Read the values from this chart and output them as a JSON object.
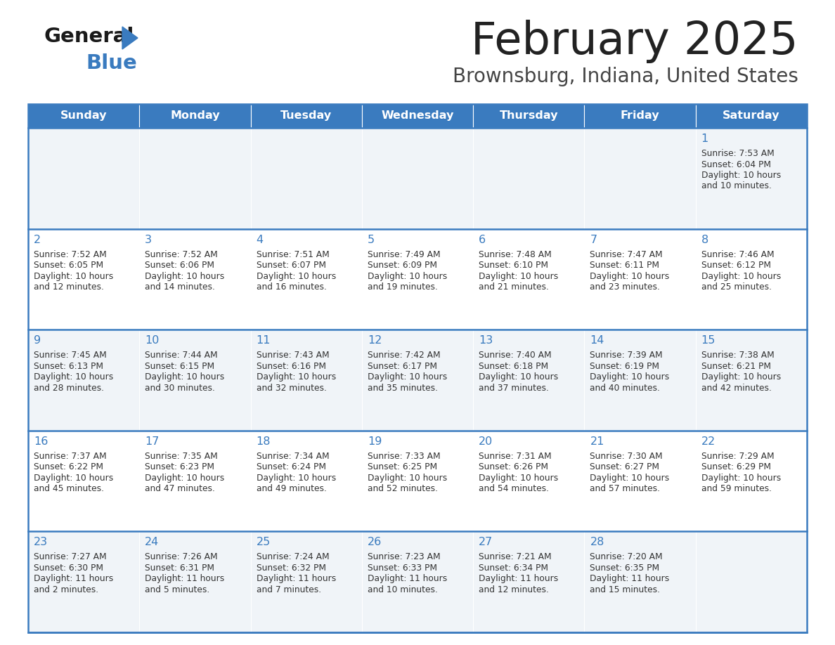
{
  "title": "February 2025",
  "subtitle": "Brownsburg, Indiana, United States",
  "header_color": "#3a7bbf",
  "header_text_color": "#ffffff",
  "title_color": "#222222",
  "subtitle_color": "#444444",
  "day_number_color": "#3a7bbf",
  "cell_text_color": "#333333",
  "cell_bg_even": "#f0f4f8",
  "cell_bg_odd": "#ffffff",
  "border_color": "#3a7bbf",
  "days_of_week": [
    "Sunday",
    "Monday",
    "Tuesday",
    "Wednesday",
    "Thursday",
    "Friday",
    "Saturday"
  ],
  "calendar": [
    [
      null,
      null,
      null,
      null,
      null,
      null,
      {
        "day": 1,
        "sunrise": "7:53 AM",
        "sunset": "6:04 PM",
        "daylight": "10 hours\nand 10 minutes."
      }
    ],
    [
      {
        "day": 2,
        "sunrise": "7:52 AM",
        "sunset": "6:05 PM",
        "daylight": "10 hours\nand 12 minutes."
      },
      {
        "day": 3,
        "sunrise": "7:52 AM",
        "sunset": "6:06 PM",
        "daylight": "10 hours\nand 14 minutes."
      },
      {
        "day": 4,
        "sunrise": "7:51 AM",
        "sunset": "6:07 PM",
        "daylight": "10 hours\nand 16 minutes."
      },
      {
        "day": 5,
        "sunrise": "7:49 AM",
        "sunset": "6:09 PM",
        "daylight": "10 hours\nand 19 minutes."
      },
      {
        "day": 6,
        "sunrise": "7:48 AM",
        "sunset": "6:10 PM",
        "daylight": "10 hours\nand 21 minutes."
      },
      {
        "day": 7,
        "sunrise": "7:47 AM",
        "sunset": "6:11 PM",
        "daylight": "10 hours\nand 23 minutes."
      },
      {
        "day": 8,
        "sunrise": "7:46 AM",
        "sunset": "6:12 PM",
        "daylight": "10 hours\nand 25 minutes."
      }
    ],
    [
      {
        "day": 9,
        "sunrise": "7:45 AM",
        "sunset": "6:13 PM",
        "daylight": "10 hours\nand 28 minutes."
      },
      {
        "day": 10,
        "sunrise": "7:44 AM",
        "sunset": "6:15 PM",
        "daylight": "10 hours\nand 30 minutes."
      },
      {
        "day": 11,
        "sunrise": "7:43 AM",
        "sunset": "6:16 PM",
        "daylight": "10 hours\nand 32 minutes."
      },
      {
        "day": 12,
        "sunrise": "7:42 AM",
        "sunset": "6:17 PM",
        "daylight": "10 hours\nand 35 minutes."
      },
      {
        "day": 13,
        "sunrise": "7:40 AM",
        "sunset": "6:18 PM",
        "daylight": "10 hours\nand 37 minutes."
      },
      {
        "day": 14,
        "sunrise": "7:39 AM",
        "sunset": "6:19 PM",
        "daylight": "10 hours\nand 40 minutes."
      },
      {
        "day": 15,
        "sunrise": "7:38 AM",
        "sunset": "6:21 PM",
        "daylight": "10 hours\nand 42 minutes."
      }
    ],
    [
      {
        "day": 16,
        "sunrise": "7:37 AM",
        "sunset": "6:22 PM",
        "daylight": "10 hours\nand 45 minutes."
      },
      {
        "day": 17,
        "sunrise": "7:35 AM",
        "sunset": "6:23 PM",
        "daylight": "10 hours\nand 47 minutes."
      },
      {
        "day": 18,
        "sunrise": "7:34 AM",
        "sunset": "6:24 PM",
        "daylight": "10 hours\nand 49 minutes."
      },
      {
        "day": 19,
        "sunrise": "7:33 AM",
        "sunset": "6:25 PM",
        "daylight": "10 hours\nand 52 minutes."
      },
      {
        "day": 20,
        "sunrise": "7:31 AM",
        "sunset": "6:26 PM",
        "daylight": "10 hours\nand 54 minutes."
      },
      {
        "day": 21,
        "sunrise": "7:30 AM",
        "sunset": "6:27 PM",
        "daylight": "10 hours\nand 57 minutes."
      },
      {
        "day": 22,
        "sunrise": "7:29 AM",
        "sunset": "6:29 PM",
        "daylight": "10 hours\nand 59 minutes."
      }
    ],
    [
      {
        "day": 23,
        "sunrise": "7:27 AM",
        "sunset": "6:30 PM",
        "daylight": "11 hours\nand 2 minutes."
      },
      {
        "day": 24,
        "sunrise": "7:26 AM",
        "sunset": "6:31 PM",
        "daylight": "11 hours\nand 5 minutes."
      },
      {
        "day": 25,
        "sunrise": "7:24 AM",
        "sunset": "6:32 PM",
        "daylight": "11 hours\nand 7 minutes."
      },
      {
        "day": 26,
        "sunrise": "7:23 AM",
        "sunset": "6:33 PM",
        "daylight": "11 hours\nand 10 minutes."
      },
      {
        "day": 27,
        "sunrise": "7:21 AM",
        "sunset": "6:34 PM",
        "daylight": "11 hours\nand 12 minutes."
      },
      {
        "day": 28,
        "sunrise": "7:20 AM",
        "sunset": "6:35 PM",
        "daylight": "11 hours\nand 15 minutes."
      },
      null
    ]
  ]
}
